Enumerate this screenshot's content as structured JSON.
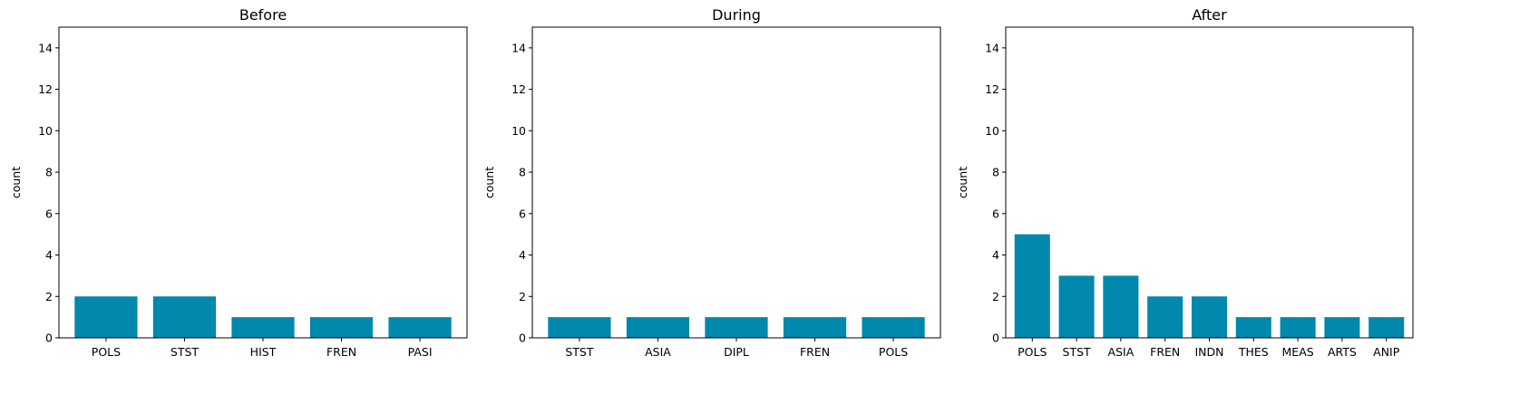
{
  "colors": {
    "bar": "#0088ad",
    "axis": "#000000",
    "background": "#ffffff"
  },
  "chart_data": [
    {
      "type": "bar",
      "title": "Before",
      "xlabel": "",
      "ylabel": "count",
      "categories": [
        "POLS",
        "STST",
        "HIST",
        "FREN",
        "PASI"
      ],
      "values": [
        2,
        2,
        1,
        1,
        1
      ],
      "ylim": [
        0,
        15
      ],
      "yticks": [
        0,
        2,
        4,
        6,
        8,
        10,
        12,
        14
      ],
      "grid": false
    },
    {
      "type": "bar",
      "title": "During",
      "xlabel": "",
      "ylabel": "count",
      "categories": [
        "STST",
        "ASIA",
        "DIPL",
        "FREN",
        "POLS"
      ],
      "values": [
        1,
        1,
        1,
        1,
        1
      ],
      "ylim": [
        0,
        15
      ],
      "yticks": [
        0,
        2,
        4,
        6,
        8,
        10,
        12,
        14
      ],
      "grid": false
    },
    {
      "type": "bar",
      "title": "After",
      "xlabel": "",
      "ylabel": "count",
      "categories": [
        "POLS",
        "STST",
        "ASIA",
        "FREN",
        "INDN",
        "THES",
        "MEAS",
        "ARTS",
        "ANIP"
      ],
      "values": [
        5,
        3,
        3,
        2,
        2,
        1,
        1,
        1,
        1
      ],
      "ylim": [
        0,
        15
      ],
      "yticks": [
        0,
        2,
        4,
        6,
        8,
        10,
        12,
        14
      ],
      "grid": false
    }
  ]
}
